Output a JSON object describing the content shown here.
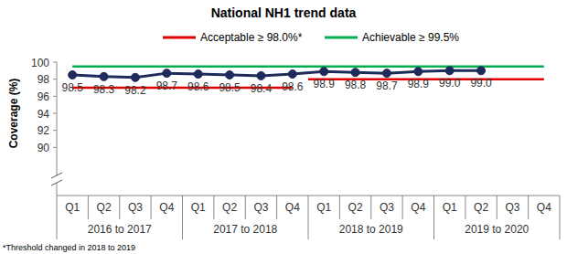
{
  "chart_data": {
    "type": "line",
    "title": "National NH1 trend data",
    "ylabel": "Coverage (%)",
    "footnote": "*Threshold changed in 2018 to 2019",
    "categories": [
      "Q1",
      "Q2",
      "Q3",
      "Q4",
      "Q1",
      "Q2",
      "Q3",
      "Q4",
      "Q1",
      "Q2",
      "Q3",
      "Q4",
      "Q1",
      "Q2",
      "Q3",
      "Q4"
    ],
    "category_groups": [
      "2016 to 2017",
      "2017 to 2018",
      "2018 to 2019",
      "2019 to 2020"
    ],
    "ylim": [
      88,
      100
    ],
    "yticks": [
      90,
      92,
      94,
      96,
      98,
      100
    ],
    "grid": false,
    "legend": "top",
    "series": [
      {
        "color": "#1f2a5c",
        "marker": "circle",
        "line_style": "solid",
        "data_labels": true,
        "values": [
          98.5,
          98.3,
          98.2,
          98.7,
          98.6,
          98.5,
          98.4,
          98.6,
          98.9,
          98.8,
          98.7,
          98.9,
          99.0,
          99.0,
          null,
          null
        ],
        "value_labels": [
          "98.5",
          "98.3",
          "98.2",
          "98.7",
          "98.6",
          "98.5",
          "98.4",
          "98.6",
          "98.9",
          "98.8",
          "98.7",
          "98.9",
          "99.0",
          "99.0",
          null,
          null
        ]
      },
      {
        "name": "Acceptable ≥ 98.0%*",
        "color": "#e00000",
        "line_style": "solid",
        "values": [
          97,
          97,
          97,
          97,
          97,
          97,
          97,
          97,
          98,
          98,
          98,
          98,
          98,
          98,
          98,
          98
        ]
      },
      {
        "name": "Achievable ≥ 99.5%",
        "color": "#00b050",
        "line_style": "solid",
        "values": [
          99.5,
          99.5,
          99.5,
          99.5,
          99.5,
          99.5,
          99.5,
          99.5,
          99.5,
          99.5,
          99.5,
          99.5,
          99.5,
          99.5,
          99.5,
          99.5
        ]
      }
    ]
  }
}
